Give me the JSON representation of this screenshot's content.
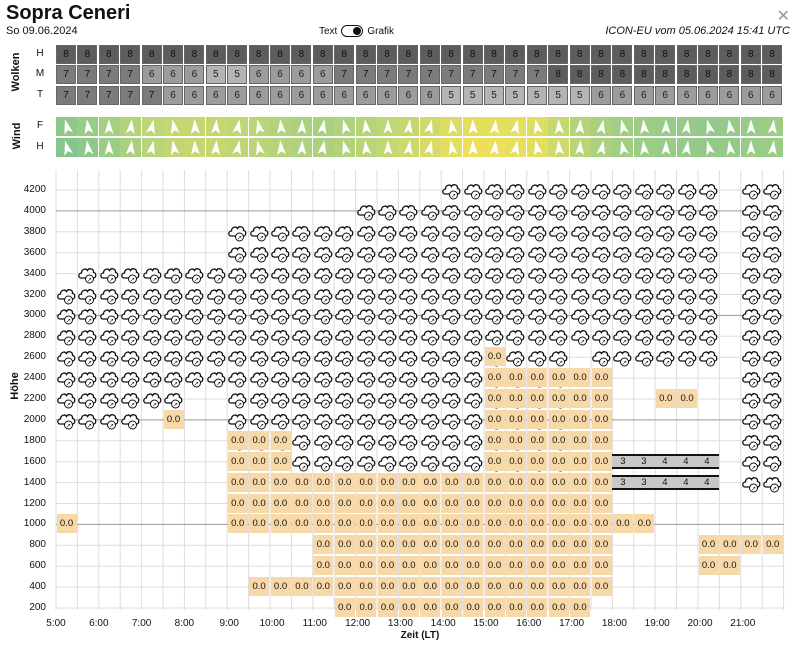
{
  "header": {
    "title": "Sopra Ceneri",
    "date": "So 09.06.2024",
    "toggle_text": "Text",
    "toggle_graph": "Grafik",
    "model": "ICON-EU vom 05.06.2024 15:41 UTC",
    "close_label": "✕"
  },
  "clouds": {
    "label": "Wolken",
    "rows": [
      {
        "name": "H",
        "values": [
          8,
          8,
          8,
          8,
          8,
          8,
          8,
          8,
          8,
          8,
          8,
          8,
          8,
          8,
          8,
          8,
          8,
          8,
          8,
          8,
          8,
          8,
          8,
          8,
          8,
          8,
          8,
          8,
          8,
          8,
          8,
          8,
          8,
          8,
          8,
          8
        ]
      },
      {
        "name": "M",
        "values": [
          7,
          7,
          7,
          7,
          6,
          6,
          6,
          5,
          5,
          6,
          6,
          6,
          6,
          7,
          7,
          7,
          7,
          7,
          7,
          7,
          7,
          7,
          7,
          8,
          8,
          8,
          8,
          8,
          8,
          8,
          8,
          8,
          8,
          8,
          8,
          8
        ]
      },
      {
        "name": "T",
        "values": [
          7,
          7,
          7,
          7,
          7,
          6,
          6,
          6,
          6,
          6,
          6,
          6,
          6,
          6,
          6,
          6,
          6,
          6,
          5,
          5,
          5,
          5,
          5,
          5,
          5,
          6,
          6,
          6,
          6,
          6,
          6,
          6,
          6,
          6,
          6,
          6
        ]
      }
    ],
    "colors": {
      "8": "#5d5d5d",
      "7": "#7b7b7b",
      "6": "#9c9c9c",
      "5": "#b4b4b4"
    }
  },
  "wind": {
    "label": "Wind",
    "rows": [
      {
        "name": "F",
        "colors": [
          "#8fc989",
          "#99cc85",
          "#a6cf80",
          "#b3d37b",
          "#bdd676",
          "#c3d773",
          "#c6d771",
          "#c6d771",
          "#bfd674",
          "#b9d577",
          "#b2d37b",
          "#acd17e",
          "#a9d07f",
          "#aed27d",
          "#b5d47a",
          "#bdd676",
          "#c6d770",
          "#d0da6b",
          "#dadc66",
          "#e4de60",
          "#e6df5e",
          "#e4de60",
          "#dedd63",
          "#c8d870",
          "#b5d47a",
          "#aad07f",
          "#a2ce83",
          "#9ccd85",
          "#98cb87",
          "#95ca88",
          "#93ca89",
          "#95ca88",
          "#98cb87",
          "#9ccd85",
          "#a0cd84",
          "#a4ce82"
        ]
      },
      {
        "name": "H",
        "colors": [
          "#85c68e",
          "#8fc989",
          "#9ccd85",
          "#aad07f",
          "#b6d47a",
          "#c0d675",
          "#c6d771",
          "#c6d771",
          "#c0d675",
          "#bad577",
          "#b4d37b",
          "#aed27d",
          "#acd17e",
          "#b3d37b",
          "#bad577",
          "#c3d773",
          "#cdd96d",
          "#d8db67",
          "#e4de60",
          "#eddf5b",
          "#ecdf5b",
          "#e8de5e",
          "#e4de60",
          "#cfd96d",
          "#bad577",
          "#acd17e",
          "#a2ce83",
          "#9ccd85",
          "#98cb87",
          "#95ca88",
          "#93ca89",
          "#95ca88",
          "#98cb87",
          "#9ccd85",
          "#a0cd84",
          "#a4ce82"
        ]
      }
    ]
  },
  "chart": {
    "y_label": "Höhe",
    "x_label": "Zeit (LT)",
    "y_ticks": [
      "4200",
      "4000",
      "3800",
      "3600",
      "3400",
      "3200",
      "3000",
      "2800",
      "2600",
      "2400",
      "2200",
      "2000",
      "1800",
      "1600",
      "1400",
      "1200",
      "1000",
      "800",
      "600",
      "400",
      "200"
    ],
    "x_ticks": [
      "5:00",
      "6:00",
      "7:00",
      "8:00",
      "9:00",
      "10:00",
      "11:00",
      "12:00",
      "13:00",
      "14:00",
      "15:00",
      "16:00",
      "17:00",
      "18:00",
      "19:00",
      "20:00",
      "21:00"
    ],
    "value_label": "0.0",
    "cloud_levels": "Wolkensymbole",
    "lift_bar_upper": [
      "3",
      "3",
      "4",
      "4",
      "4"
    ],
    "lift_bar_lower": [
      "3",
      "3",
      "4",
      "4",
      "4"
    ]
  }
}
